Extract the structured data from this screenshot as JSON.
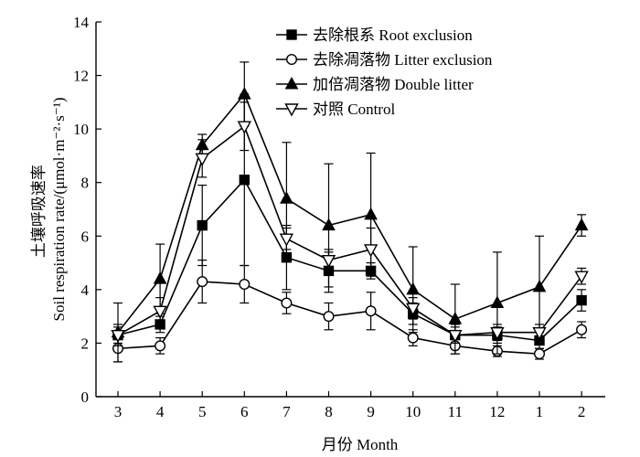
{
  "chart_data": {
    "type": "line",
    "title": "",
    "xlabel": "月份 Month",
    "ylabel_cn": "土壤呼吸速率",
    "ylabel_en": "Soil respiration rate/(μmol·m⁻²·s⁻¹)",
    "categories": [
      "3",
      "4",
      "5",
      "6",
      "7",
      "8",
      "9",
      "10",
      "11",
      "12",
      "1",
      "2"
    ],
    "yticks": [
      "0",
      "2",
      "4",
      "6",
      "8",
      "10",
      "12",
      "14"
    ],
    "ylim": [
      0,
      14
    ],
    "grid": false,
    "legend_position": "top-right",
    "series": [
      {
        "name": "去除根系 Root exclusion",
        "marker": "square-filled",
        "values": [
          2.3,
          2.7,
          6.4,
          8.1,
          5.2,
          4.7,
          4.7,
          3.1,
          2.3,
          2.3,
          2.1,
          3.6
        ],
        "errors": [
          0.3,
          0.3,
          1.5,
          3.2,
          1.2,
          0.8,
          0.3,
          0.4,
          0.4,
          0.3,
          0.3,
          0.4
        ]
      },
      {
        "name": "去除凋落物 Litter exclusion",
        "marker": "circle-open",
        "values": [
          1.8,
          1.9,
          4.3,
          4.2,
          3.5,
          3.0,
          3.2,
          2.2,
          1.9,
          1.7,
          1.6,
          2.5
        ],
        "errors": [
          0.5,
          0.3,
          0.8,
          0.7,
          0.4,
          0.5,
          0.7,
          0.3,
          0.3,
          0.2,
          0.2,
          0.3
        ]
      },
      {
        "name": "加倍凋落物 Double litter",
        "marker": "triangle-up-filled",
        "values": [
          2.4,
          4.4,
          9.4,
          11.3,
          7.4,
          6.4,
          6.8,
          4.0,
          2.9,
          3.5,
          4.1,
          6.4
        ],
        "errors": [
          1.1,
          1.3,
          0.4,
          1.2,
          2.1,
          2.3,
          2.3,
          1.6,
          1.3,
          1.9,
          1.9,
          0.4
        ]
      },
      {
        "name": "对照 Control",
        "marker": "triangle-down-open",
        "values": [
          2.3,
          3.2,
          8.9,
          10.1,
          5.9,
          5.1,
          5.5,
          3.3,
          2.3,
          2.4,
          2.4,
          4.5
        ],
        "errors": [
          0.4,
          0.5,
          0.7,
          0.9,
          0.4,
          0.3,
          0.8,
          0.4,
          0.3,
          0.3,
          0.3,
          0.3
        ]
      }
    ]
  }
}
